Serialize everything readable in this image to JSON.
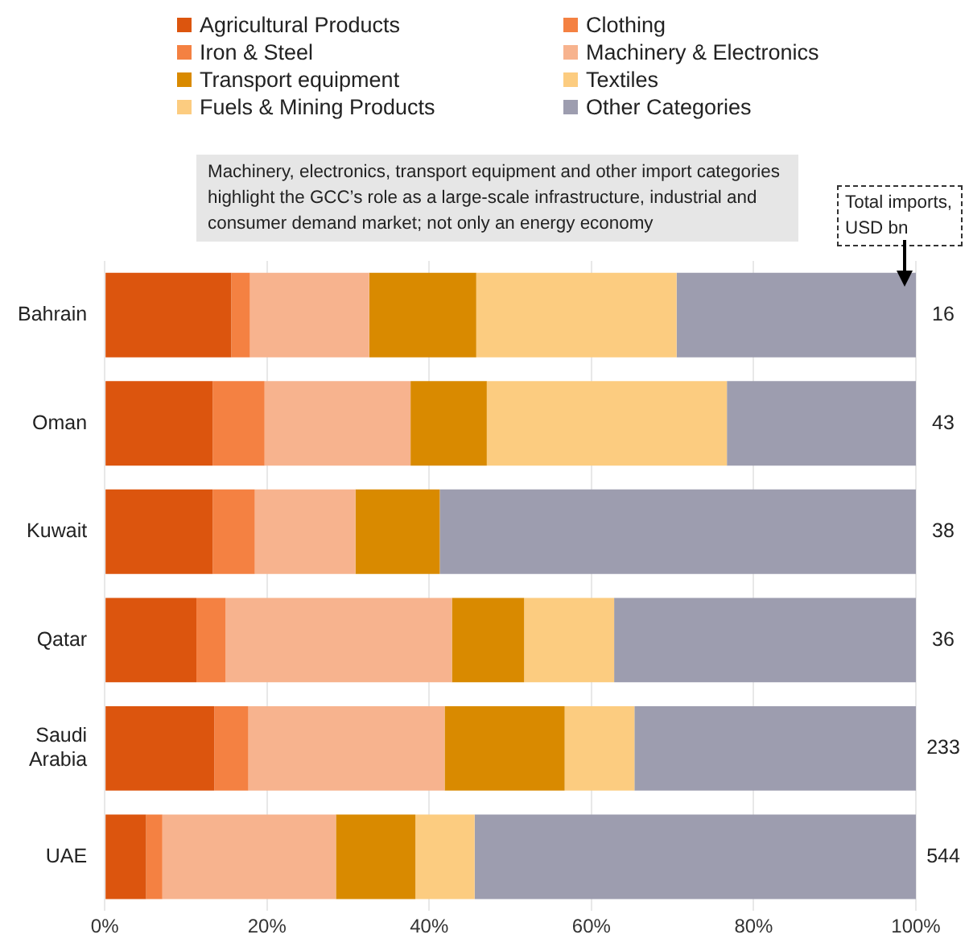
{
  "chart_data": {
    "type": "bar",
    "orientation": "horizontal",
    "stacked": true,
    "categories": [
      "Bahrain",
      "Oman",
      "Kuwait",
      "Qatar",
      "Saudi Arabia",
      "UAE"
    ],
    "series": [
      {
        "name": "Agricultural Products",
        "color": "#dc550e",
        "values": [
          15.6,
          13.3,
          13.3,
          11.3,
          13.5,
          5.1
        ]
      },
      {
        "name": "Clothing",
        "color": "#f48142",
        "values": [
          2.3,
          6.4,
          5.2,
          3.6,
          4.2,
          2.0
        ]
      },
      {
        "name": "Iron & Steel",
        "color": "#f48142",
        "values": [
          0,
          0,
          0,
          0,
          0,
          0
        ]
      },
      {
        "name": "Machinery & Electronics",
        "color": "#f7b38e",
        "values": [
          14.7,
          18.0,
          12.4,
          27.9,
          24.2,
          21.4
        ]
      },
      {
        "name": "Transport equipment",
        "color": "#d98a00",
        "values": [
          13.2,
          9.4,
          10.4,
          8.9,
          14.8,
          9.8
        ]
      },
      {
        "name": "Textiles",
        "color": "#fccc80",
        "values": [
          24.7,
          29.6,
          0,
          11.1,
          8.6,
          7.3
        ]
      },
      {
        "name": "Fuels & Mining Products",
        "color": "#fccc80",
        "values": [
          0,
          0,
          0,
          0,
          0,
          0
        ]
      },
      {
        "name": "Other Categories",
        "color": "#9d9daf",
        "values": [
          29.5,
          23.3,
          58.7,
          37.2,
          34.7,
          54.4
        ]
      }
    ],
    "xlim": [
      0,
      100
    ],
    "xticks": [
      {
        "value": 0,
        "label": "0%"
      },
      {
        "value": 20,
        "label": "20%"
      },
      {
        "value": 40,
        "label": "40%"
      },
      {
        "value": 60,
        "label": "60%"
      },
      {
        "value": 80,
        "label": "80%"
      },
      {
        "value": 100,
        "label": "100%"
      }
    ],
    "annotations": [
      "Machinery, electronics, transport equipment and other import categories highlight the GCC’s role as a large-scale infrastructure, industrial and consumer demand market; not only an energy economy",
      "Total imports, USD bn",
      "16",
      "43",
      "38",
      "36",
      "233",
      "544"
    ],
    "grid": "x",
    "legend": "top"
  }
}
